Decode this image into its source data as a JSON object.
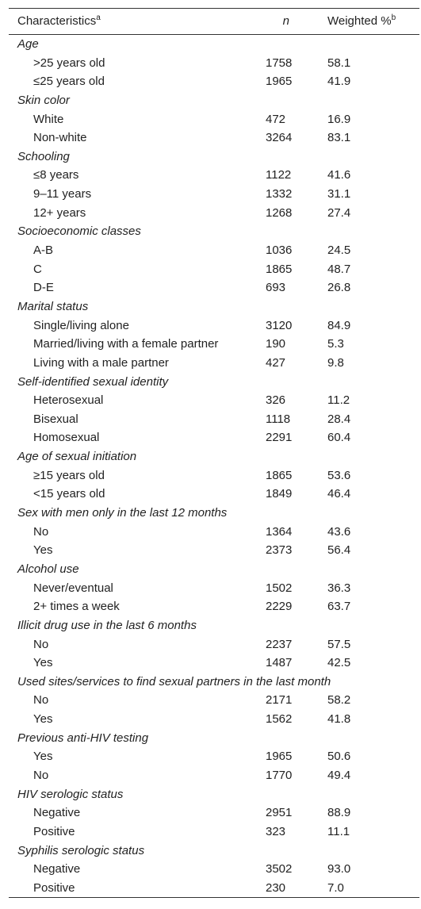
{
  "header": {
    "characteristics": "Characteristics",
    "characteristics_note": "a",
    "n": "n",
    "weighted": "Weighted %",
    "weighted_note": "b"
  },
  "sections": [
    {
      "title": "Age",
      "rows": [
        [
          ">25 years old",
          "1758",
          "58.1"
        ],
        [
          "≤25 years old",
          "1965",
          "41.9"
        ]
      ]
    },
    {
      "title": "Skin color",
      "rows": [
        [
          "White",
          "472",
          "16.9"
        ],
        [
          "Non-white",
          "3264",
          "83.1"
        ]
      ]
    },
    {
      "title": "Schooling",
      "rows": [
        [
          "≤8 years",
          "1122",
          "41.6"
        ],
        [
          "9–11 years",
          "1332",
          "31.1"
        ],
        [
          "12+ years",
          "1268",
          "27.4"
        ]
      ]
    },
    {
      "title": "Socioeconomic classes",
      "rows": [
        [
          "A-B",
          "1036",
          "24.5"
        ],
        [
          "C",
          "1865",
          "48.7"
        ],
        [
          "D-E",
          "693",
          "26.8"
        ]
      ]
    },
    {
      "title": "Marital status",
      "rows": [
        [
          "Single/living alone",
          "3120",
          "84.9"
        ],
        [
          "Married/living with a female partner",
          "190",
          "5.3"
        ],
        [
          "Living with a male partner",
          "427",
          "9.8"
        ]
      ]
    },
    {
      "title": "Self-identified sexual identity",
      "rows": [
        [
          "Heterosexual",
          "326",
          "11.2"
        ],
        [
          "Bisexual",
          "1118",
          "28.4"
        ],
        [
          "Homosexual",
          "2291",
          "60.4"
        ]
      ]
    },
    {
      "title": "Age of sexual initiation",
      "rows": [
        [
          "≥15 years old",
          "1865",
          "53.6"
        ],
        [
          "<15 years old",
          "1849",
          "46.4"
        ]
      ]
    },
    {
      "title": "Sex with men only in the last 12 months",
      "rows": [
        [
          "No",
          "1364",
          "43.6"
        ],
        [
          "Yes",
          "2373",
          "56.4"
        ]
      ]
    },
    {
      "title": "Alcohol use",
      "rows": [
        [
          "Never/eventual",
          "1502",
          "36.3"
        ],
        [
          "2+ times a week",
          "2229",
          "63.7"
        ]
      ]
    },
    {
      "title": "Illicit drug use in the last 6 months",
      "rows": [
        [
          "No",
          "2237",
          "57.5"
        ],
        [
          "Yes",
          "1487",
          "42.5"
        ]
      ]
    },
    {
      "title": "Used sites/services to find sexual partners in the last month",
      "rows": [
        [
          "No",
          "2171",
          "58.2"
        ],
        [
          "Yes",
          "1562",
          "41.8"
        ]
      ]
    },
    {
      "title": "Previous anti-HIV testing",
      "rows": [
        [
          "Yes",
          "1965",
          "50.6"
        ],
        [
          "No",
          "1770",
          "49.4"
        ]
      ]
    },
    {
      "title": "HIV serologic status",
      "rows": [
        [
          "Negative",
          "2951",
          "88.9"
        ],
        [
          "Positive",
          "323",
          "11.1"
        ]
      ]
    },
    {
      "title": "Syphilis serologic status",
      "rows": [
        [
          "Negative",
          "3502",
          "93.0"
        ],
        [
          "Positive",
          "230",
          "7.0"
        ]
      ]
    }
  ]
}
